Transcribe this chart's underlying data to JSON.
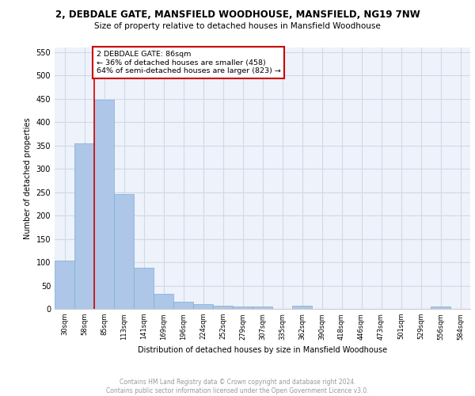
{
  "title1": "2, DEBDALE GATE, MANSFIELD WOODHOUSE, MANSFIELD, NG19 7NW",
  "title2": "Size of property relative to detached houses in Mansfield Woodhouse",
  "xlabel": "Distribution of detached houses by size in Mansfield Woodhouse",
  "ylabel": "Number of detached properties",
  "categories": [
    "30sqm",
    "58sqm",
    "85sqm",
    "113sqm",
    "141sqm",
    "169sqm",
    "196sqm",
    "224sqm",
    "252sqm",
    "279sqm",
    "307sqm",
    "335sqm",
    "362sqm",
    "390sqm",
    "418sqm",
    "446sqm",
    "473sqm",
    "501sqm",
    "529sqm",
    "556sqm",
    "584sqm"
  ],
  "values": [
    104,
    354,
    448,
    246,
    89,
    32,
    15,
    10,
    6,
    5,
    5,
    0,
    6,
    0,
    0,
    0,
    0,
    0,
    0,
    5,
    0
  ],
  "bar_color": "#aec6e8",
  "bar_edge_color": "#7aafd4",
  "annotation_text": "2 DEBDALE GATE: 86sqm\n← 36% of detached houses are smaller (458)\n64% of semi-detached houses are larger (823) →",
  "annotation_box_color": "#ffffff",
  "annotation_box_edge": "#cc0000",
  "grid_color": "#d0d8e8",
  "background_color": "#eef2fa",
  "footer_text": "Contains HM Land Registry data © Crown copyright and database right 2024.\nContains public sector information licensed under the Open Government Licence v3.0.",
  "ylim": [
    0,
    560
  ],
  "yticks": [
    0,
    50,
    100,
    150,
    200,
    250,
    300,
    350,
    400,
    450,
    500,
    550
  ]
}
